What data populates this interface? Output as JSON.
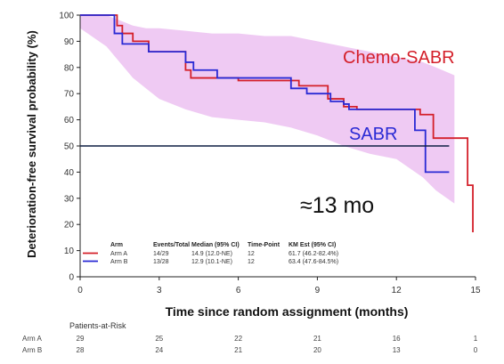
{
  "chart_data": {
    "type": "line",
    "title": "",
    "xlabel": "Time since random assignment (months)",
    "ylabel": "Deterioration-free survival probability (%)",
    "xlim": [
      0,
      15
    ],
    "ylim": [
      0,
      100
    ],
    "xticks": [
      0,
      3,
      6,
      9,
      12,
      15
    ],
    "yticks": [
      0,
      10,
      20,
      30,
      40,
      50,
      60,
      70,
      80,
      90,
      100
    ],
    "grid": false,
    "band": {
      "name": "",
      "x": [
        0,
        1,
        1.5,
        2,
        2.5,
        3,
        4,
        5,
        6,
        7,
        8,
        9,
        10,
        11,
        12,
        13,
        13.5,
        14.2
      ],
      "lower": [
        95,
        88,
        82,
        76,
        72,
        68,
        64,
        61,
        60,
        59,
        57,
        54,
        50,
        47,
        45,
        38,
        33,
        28
      ],
      "upper": [
        100,
        100,
        98,
        96,
        95,
        95,
        94,
        93,
        93,
        92,
        92,
        90,
        88,
        86,
        84,
        82,
        80,
        77
      ],
      "color": "#eab8ef"
    },
    "series": [
      {
        "name": "Arm A",
        "color": "#d4202a",
        "x": [
          0,
          1.1,
          1.4,
          1.6,
          2.0,
          2.6,
          3.3,
          4.0,
          4.2,
          6.0,
          8.3,
          9.4,
          10.0,
          10.5,
          12.9,
          13.4,
          14.4,
          14.7,
          14.9
        ],
        "y": [
          100,
          100,
          96,
          93,
          90,
          86,
          86,
          79,
          76,
          75,
          73,
          68,
          65,
          64,
          62,
          53,
          53,
          35,
          17
        ]
      },
      {
        "name": "Arm B",
        "color": "#2a2ad4",
        "x": [
          0,
          1.0,
          1.3,
          1.6,
          2.0,
          2.6,
          3.5,
          4.0,
          4.3,
          5.2,
          8.0,
          8.6,
          9.5,
          10.0,
          10.2,
          12.5,
          12.7,
          13.0,
          13.1,
          14.0
        ],
        "y": [
          100,
          100,
          93,
          89,
          89,
          86,
          86,
          82,
          79,
          76,
          72,
          70,
          67,
          66,
          64,
          64,
          56,
          56,
          40,
          40
        ]
      }
    ],
    "reference_line": {
      "y": 50,
      "x_start": 0,
      "x_end": 14.0
    },
    "annotations": [
      {
        "text": "Chemo-SABR",
        "color": "#d4202a"
      },
      {
        "text": "SABR",
        "color": "#2a2ad4"
      },
      {
        "text": "≈13 mo",
        "color": "#111111"
      }
    ],
    "legend": {
      "headers": [
        "Arm",
        "Events/Total",
        "Median (95% CI)",
        "Time-Point",
        "KM Est (95% CI)"
      ],
      "rows": [
        {
          "arm": "Arm A",
          "color": "#d4202a",
          "events": "14/29",
          "median": "14.9 (12.0-NE)",
          "tp": "12",
          "km": "61.7 (46.2-82.4%)"
        },
        {
          "arm": "Arm B",
          "color": "#2a2ad4",
          "events": "13/28",
          "median": "12.9 (10.1-NE)",
          "tp": "12",
          "km": "63.4 (47.6-84.5%)"
        }
      ]
    },
    "risk_table": {
      "title": "Patients-at-Risk",
      "rows": [
        {
          "label": "Arm A",
          "values": [
            "29",
            "25",
            "22",
            "21",
            "16",
            "1"
          ]
        },
        {
          "label": "Arm B",
          "values": [
            "28",
            "24",
            "21",
            "20",
            "13",
            "0"
          ]
        }
      ]
    }
  }
}
